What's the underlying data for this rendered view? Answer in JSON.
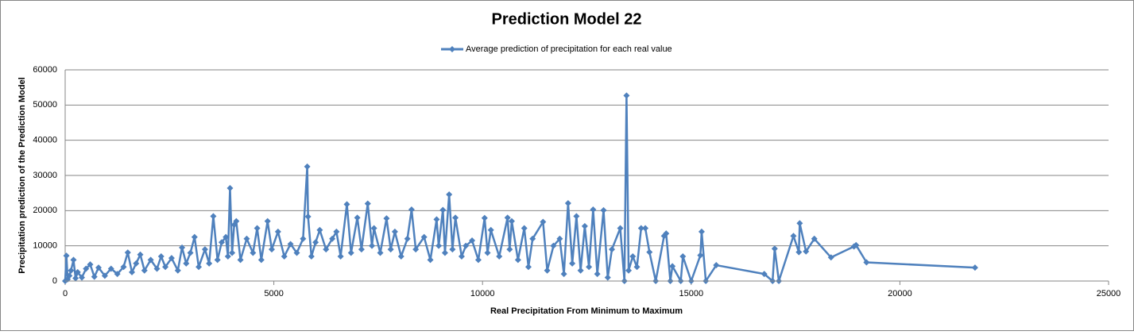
{
  "chart_data": {
    "type": "line",
    "title": "Prediction Model 22",
    "x_label": "Real Precipitation From Minimum to Maximum",
    "y_label": "Precipitation  prediction of the Prediction Model",
    "xlim": [
      0,
      25000
    ],
    "xticks": [
      0,
      5000,
      10000,
      15000,
      20000,
      25000
    ],
    "ylim": [
      0,
      60000
    ],
    "yticks": [
      0,
      10000,
      20000,
      30000,
      40000,
      50000,
      60000
    ],
    "grid": true,
    "legend": "top",
    "series": [
      {
        "name": "Average prediction of precipitation for each real value",
        "color": "#4f81bd",
        "x": [
          0,
          30,
          60,
          100,
          140,
          200,
          250,
          300,
          400,
          500,
          600,
          700,
          800,
          950,
          1100,
          1250,
          1400,
          1500,
          1600,
          1700,
          1800,
          1900,
          2050,
          2200,
          2300,
          2400,
          2550,
          2700,
          2800,
          2900,
          3000,
          3100,
          3200,
          3350,
          3450,
          3550,
          3650,
          3750,
          3850,
          3900,
          3950,
          4000,
          4050,
          4100,
          4200,
          4350,
          4500,
          4600,
          4700,
          4850,
          4950,
          5100,
          5250,
          5400,
          5550,
          5700,
          5800,
          5820,
          5900,
          6000,
          6100,
          6250,
          6400,
          6500,
          6600,
          6750,
          6850,
          7000,
          7100,
          7250,
          7350,
          7400,
          7550,
          7700,
          7800,
          7900,
          8050,
          8200,
          8300,
          8400,
          8600,
          8750,
          8900,
          8950,
          9050,
          9100,
          9200,
          9280,
          9350,
          9500,
          9600,
          9750,
          9900,
          10050,
          10120,
          10200,
          10400,
          10600,
          10650,
          10700,
          10850,
          11000,
          11100,
          11200,
          11450,
          11550,
          11700,
          11850,
          11950,
          12050,
          12150,
          12250,
          12350,
          12450,
          12550,
          12650,
          12750,
          12900,
          13000,
          13100,
          13300,
          13400,
          13450,
          13500,
          13600,
          13700,
          13800,
          13900,
          14000,
          14150,
          14350,
          14400,
          14500,
          14550,
          14750,
          14800,
          15000,
          15220,
          15250,
          15350,
          15600,
          16750,
          16950,
          17000,
          17100,
          17450,
          17580,
          17600,
          17750,
          17950,
          18350,
          18900,
          18950,
          19200,
          21800
        ],
        "values": [
          0,
          7200,
          500,
          1500,
          3000,
          6000,
          800,
          2500,
          1000,
          3500,
          4700,
          1200,
          3800,
          1500,
          3500,
          2000,
          4000,
          8100,
          2500,
          5000,
          7500,
          3000,
          6000,
          3500,
          7000,
          4000,
          6500,
          3000,
          9500,
          5000,
          8000,
          12500,
          4000,
          9000,
          5000,
          18400,
          6000,
          11000,
          12500,
          7000,
          26400,
          8000,
          16000,
          17000,
          6000,
          12000,
          8000,
          15000,
          6000,
          17000,
          9000,
          14000,
          7000,
          10500,
          8000,
          12000,
          32500,
          18300,
          7000,
          11000,
          14500,
          9000,
          12000,
          14000,
          7000,
          21800,
          8000,
          18000,
          9000,
          22000,
          10000,
          15000,
          8000,
          17800,
          9000,
          14000,
          7000,
          12000,
          20300,
          9000,
          12500,
          6000,
          17500,
          10000,
          20200,
          8000,
          24600,
          9000,
          18000,
          7000,
          10000,
          11500,
          6000,
          17900,
          8000,
          14500,
          7000,
          18000,
          9000,
          17000,
          6000,
          15000,
          4000,
          12000,
          16800,
          3000,
          10000,
          12000,
          2000,
          22100,
          5000,
          18400,
          3000,
          15600,
          4000,
          20300,
          2000,
          20100,
          1000,
          9000,
          15000,
          0,
          52700,
          3000,
          7000,
          4000,
          15000,
          15000,
          8200,
          0,
          12800,
          13500,
          0,
          4200,
          0,
          7000,
          0,
          7300,
          14000,
          0,
          4500,
          2000,
          0,
          9200,
          0,
          12800,
          8200,
          16400,
          8400,
          12000,
          6700,
          9800,
          10200,
          5300,
          3800
        ]
      }
    ]
  }
}
